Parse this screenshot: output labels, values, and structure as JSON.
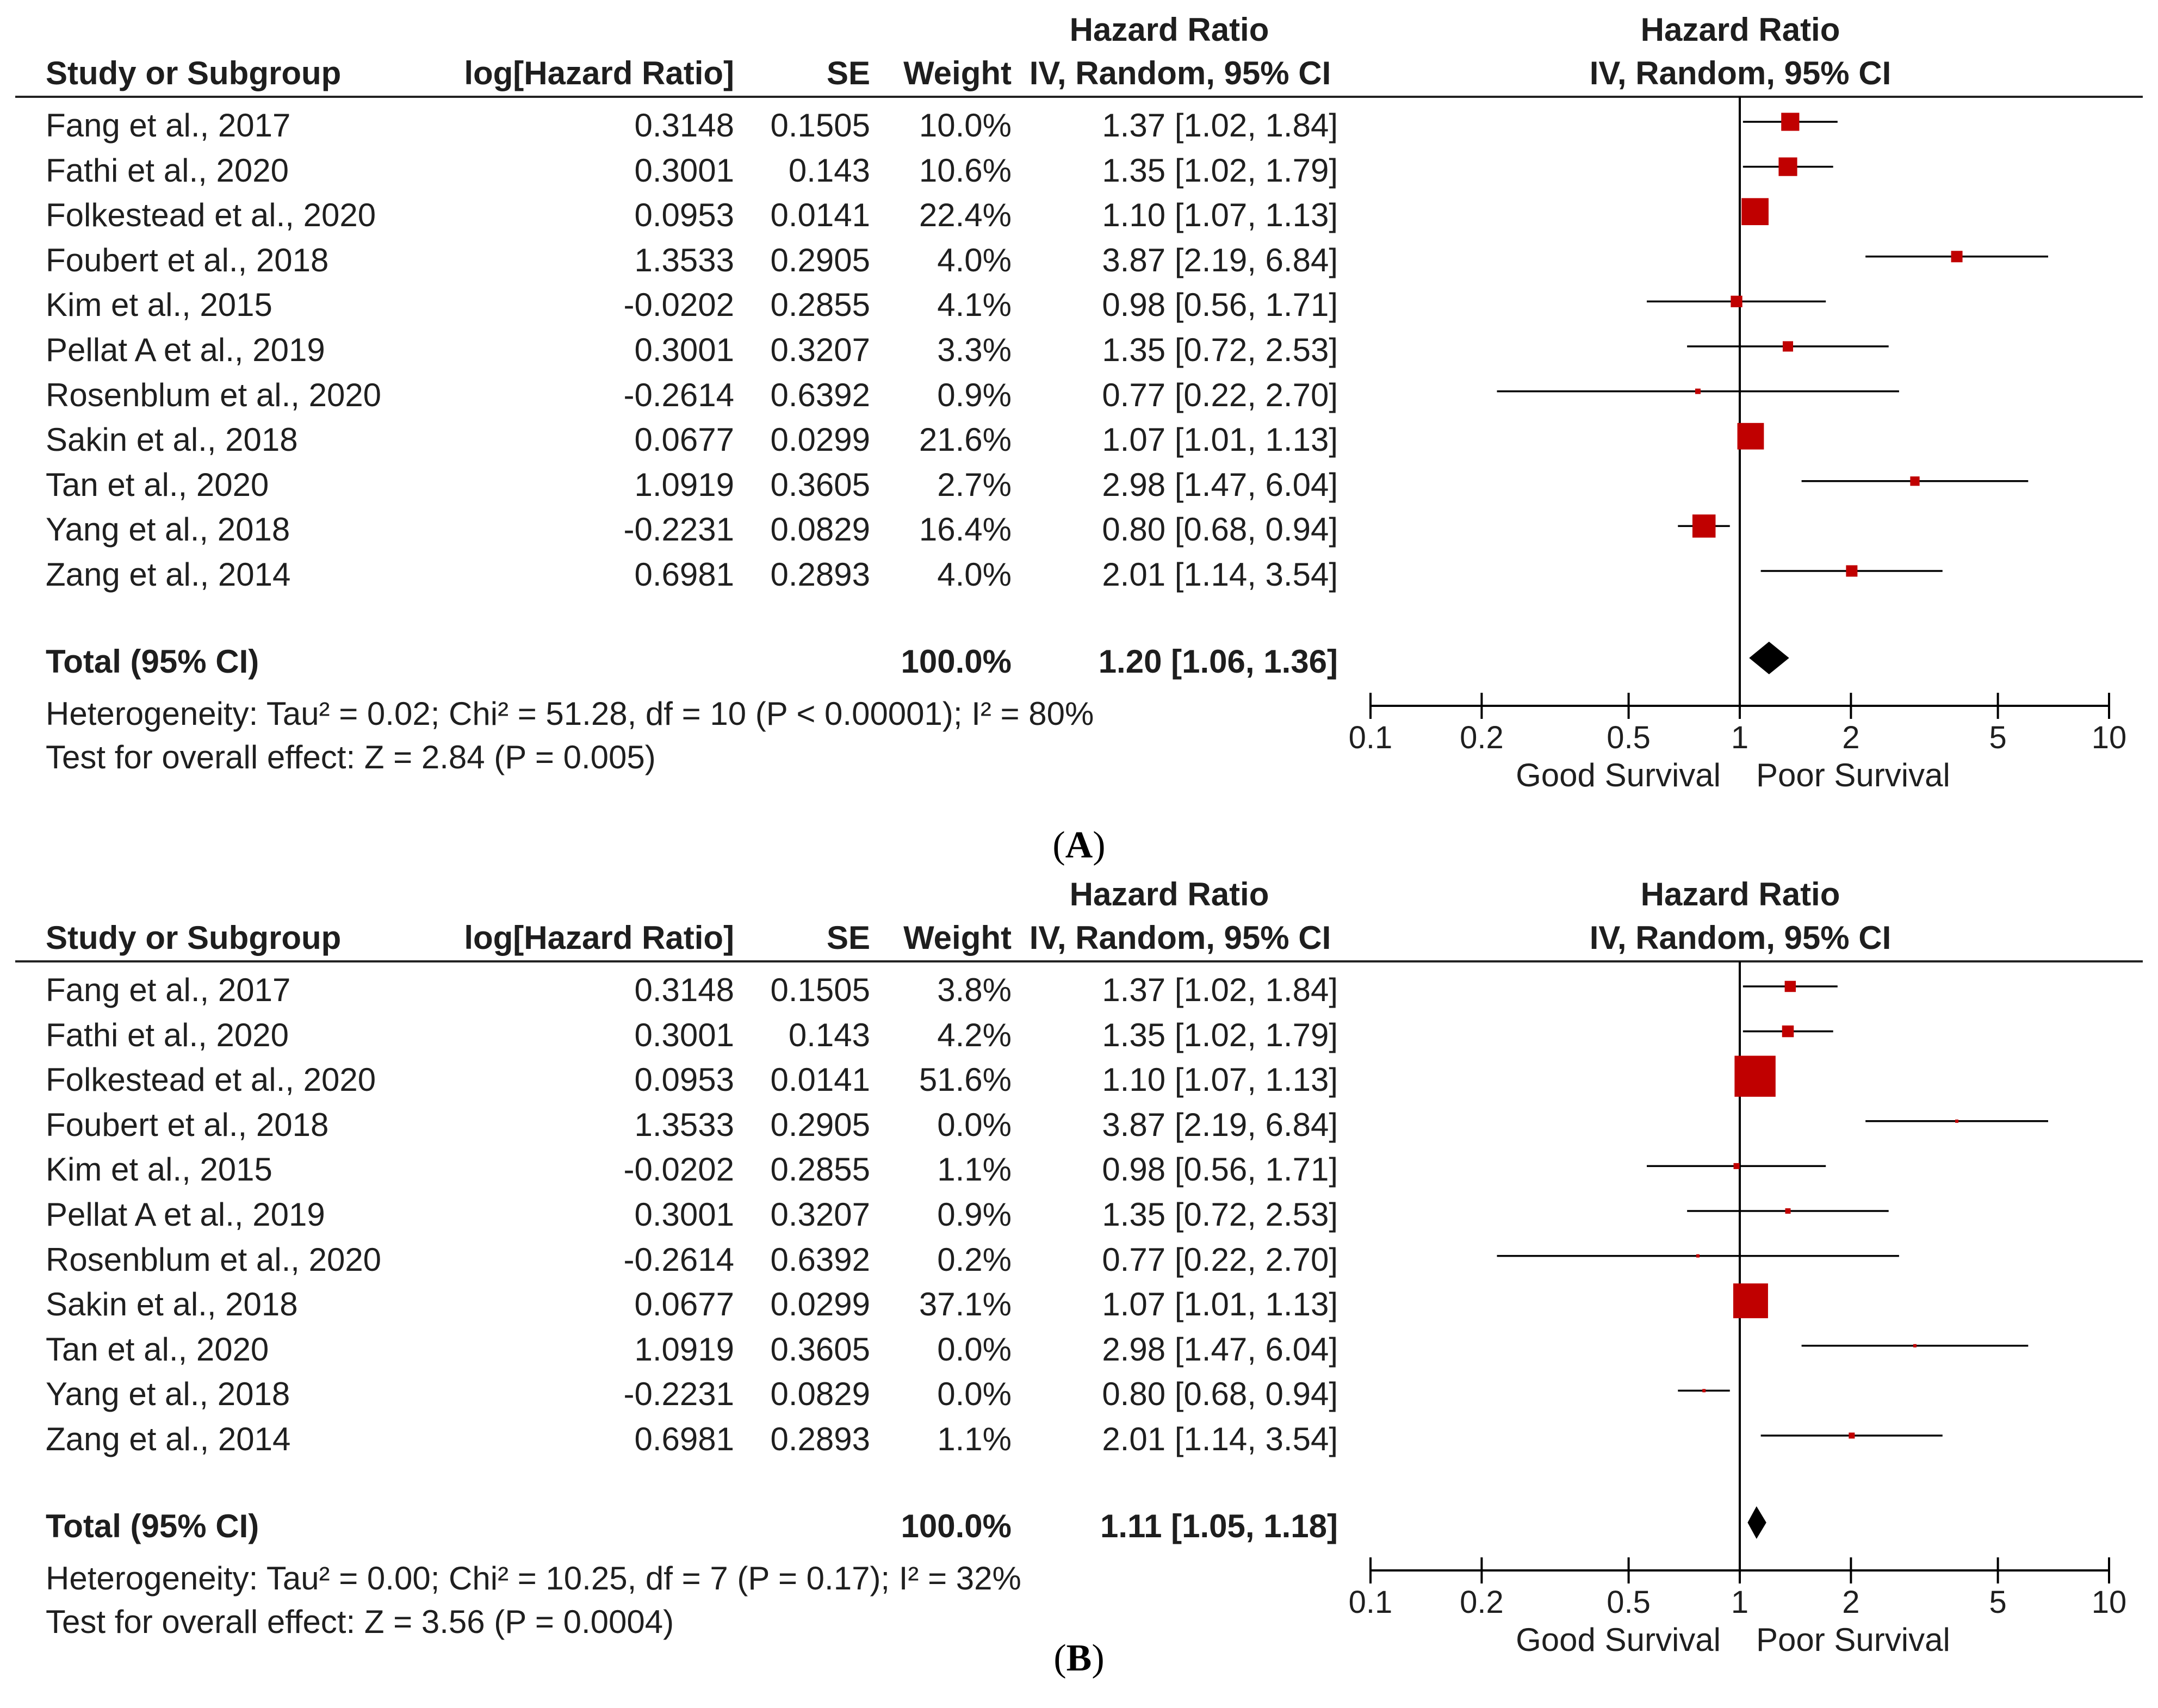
{
  "headers": {
    "study": "Study or Subgroup",
    "loghr": "log[Hazard Ratio]",
    "se": "SE",
    "weight": "Weight",
    "hr_top": "Hazard Ratio",
    "hr_sub": "IV, Random, 95% CI",
    "plot_top": "Hazard Ratio",
    "plot_sub": "IV, Random, 95% CI"
  },
  "panels": [
    {
      "id": "A",
      "caption_open": "(",
      "caption_letter": "A",
      "caption_close": ")",
      "total_label": "Total (95% CI)",
      "total_weight": "100.0%",
      "total_ci": "1.20 [1.06, 1.36]",
      "heterogeneity": "Heterogeneity: Tau² = 0.02; Chi² = 51.28, df = 10 (P < 0.00001); I² = 80%",
      "overall": "Test for overall effect: Z = 2.84 (P = 0.005)",
      "rows": [
        {
          "study": "Fang et al., 2017",
          "loghr": "0.3148",
          "se": "0.1505",
          "weight": "10.0%",
          "ci": "1.37 [1.02, 1.84]"
        },
        {
          "study": "Fathi et al., 2020",
          "loghr": "0.3001",
          "se": "0.143",
          "weight": "10.6%",
          "ci": "1.35 [1.02, 1.79]"
        },
        {
          "study": "Folkestead et al., 2020",
          "loghr": "0.0953",
          "se": "0.0141",
          "weight": "22.4%",
          "ci": "1.10 [1.07, 1.13]"
        },
        {
          "study": "Foubert et al., 2018",
          "loghr": "1.3533",
          "se": "0.2905",
          "weight": "4.0%",
          "ci": "3.87 [2.19, 6.84]"
        },
        {
          "study": "Kim et al., 2015",
          "loghr": "-0.0202",
          "se": "0.2855",
          "weight": "4.1%",
          "ci": "0.98 [0.56, 1.71]"
        },
        {
          "study": "Pellat A et al., 2019",
          "loghr": "0.3001",
          "se": "0.3207",
          "weight": "3.3%",
          "ci": "1.35 [0.72, 2.53]"
        },
        {
          "study": "Rosenblum et al., 2020",
          "loghr": "-0.2614",
          "se": "0.6392",
          "weight": "0.9%",
          "ci": "0.77 [0.22, 2.70]"
        },
        {
          "study": "Sakin et al., 2018",
          "loghr": "0.0677",
          "se": "0.0299",
          "weight": "21.6%",
          "ci": "1.07 [1.01, 1.13]"
        },
        {
          "study": "Tan et al., 2020",
          "loghr": "1.0919",
          "se": "0.3605",
          "weight": "2.7%",
          "ci": "2.98 [1.47, 6.04]"
        },
        {
          "study": "Yang et al., 2018",
          "loghr": "-0.2231",
          "se": "0.0829",
          "weight": "16.4%",
          "ci": "0.80 [0.68, 0.94]"
        },
        {
          "study": "Zang et al., 2014",
          "loghr": "0.6981",
          "se": "0.2893",
          "weight": "4.0%",
          "ci": "2.01 [1.14, 3.54]"
        }
      ]
    },
    {
      "id": "B",
      "caption_open": "(",
      "caption_letter": "B",
      "caption_close": ")",
      "total_label": "Total (95% CI)",
      "total_weight": "100.0%",
      "total_ci": "1.11 [1.05, 1.18]",
      "heterogeneity": "Heterogeneity: Tau² = 0.00; Chi² = 10.25, df = 7 (P = 0.17); I² = 32%",
      "overall": "Test for overall effect: Z = 3.56 (P = 0.0004)",
      "rows": [
        {
          "study": "Fang et al., 2017",
          "loghr": "0.3148",
          "se": "0.1505",
          "weight": "3.8%",
          "ci": "1.37 [1.02, 1.84]"
        },
        {
          "study": "Fathi et al., 2020",
          "loghr": "0.3001",
          "se": "0.143",
          "weight": "4.2%",
          "ci": "1.35 [1.02, 1.79]"
        },
        {
          "study": "Folkestead et al., 2020",
          "loghr": "0.0953",
          "se": "0.0141",
          "weight": "51.6%",
          "ci": "1.10 [1.07, 1.13]"
        },
        {
          "study": "Foubert et al., 2018",
          "loghr": "1.3533",
          "se": "0.2905",
          "weight": "0.0%",
          "ci": "3.87 [2.19, 6.84]"
        },
        {
          "study": "Kim et al., 2015",
          "loghr": "-0.0202",
          "se": "0.2855",
          "weight": "1.1%",
          "ci": "0.98 [0.56, 1.71]"
        },
        {
          "study": "Pellat A et al., 2019",
          "loghr": "0.3001",
          "se": "0.3207",
          "weight": "0.9%",
          "ci": "1.35 [0.72, 2.53]"
        },
        {
          "study": "Rosenblum et al., 2020",
          "loghr": "-0.2614",
          "se": "0.6392",
          "weight": "0.2%",
          "ci": "0.77 [0.22, 2.70]"
        },
        {
          "study": "Sakin et al., 2018",
          "loghr": "0.0677",
          "se": "0.0299",
          "weight": "37.1%",
          "ci": "1.07 [1.01, 1.13]"
        },
        {
          "study": "Tan et al., 2020",
          "loghr": "1.0919",
          "se": "0.3605",
          "weight": "0.0%",
          "ci": "2.98 [1.47, 6.04]"
        },
        {
          "study": "Yang et al., 2018",
          "loghr": "-0.2231",
          "se": "0.0829",
          "weight": "0.0%",
          "ci": "0.80 [0.68, 0.94]"
        },
        {
          "study": "Zang et al., 2014",
          "loghr": "0.6981",
          "se": "0.2893",
          "weight": "1.1%",
          "ci": "2.01 [1.14, 3.54]"
        }
      ]
    }
  ],
  "chart_data": [
    {
      "type": "forest",
      "title": "Hazard Ratio IV, Random, 95% CI",
      "xscale": "log",
      "xlim": [
        0.1,
        10
      ],
      "ticks": [
        0.1,
        0.2,
        0.5,
        1,
        2,
        5,
        10
      ],
      "tick_labels": [
        "0.1",
        "0.2",
        "0.5",
        "1",
        "2",
        "5",
        "10"
      ],
      "xlabel_left": "Good Survival",
      "xlabel_right": "Poor Survival",
      "studies": [
        {
          "hr": 1.37,
          "lo": 1.02,
          "hi": 1.84,
          "weight": 10.0
        },
        {
          "hr": 1.35,
          "lo": 1.02,
          "hi": 1.79,
          "weight": 10.6
        },
        {
          "hr": 1.1,
          "lo": 1.07,
          "hi": 1.13,
          "weight": 22.4
        },
        {
          "hr": 3.87,
          "lo": 2.19,
          "hi": 6.84,
          "weight": 4.0
        },
        {
          "hr": 0.98,
          "lo": 0.56,
          "hi": 1.71,
          "weight": 4.1
        },
        {
          "hr": 1.35,
          "lo": 0.72,
          "hi": 2.53,
          "weight": 3.3
        },
        {
          "hr": 0.77,
          "lo": 0.22,
          "hi": 2.7,
          "weight": 0.9
        },
        {
          "hr": 1.07,
          "lo": 1.01,
          "hi": 1.13,
          "weight": 21.6
        },
        {
          "hr": 2.98,
          "lo": 1.47,
          "hi": 6.04,
          "weight": 2.7
        },
        {
          "hr": 0.8,
          "lo": 0.68,
          "hi": 0.94,
          "weight": 16.4
        },
        {
          "hr": 2.01,
          "lo": 1.14,
          "hi": 3.54,
          "weight": 4.0
        }
      ],
      "total": {
        "hr": 1.2,
        "lo": 1.06,
        "hi": 1.36
      }
    },
    {
      "type": "forest",
      "title": "Hazard Ratio IV, Random, 95% CI",
      "xscale": "log",
      "xlim": [
        0.1,
        10
      ],
      "ticks": [
        0.1,
        0.2,
        0.5,
        1,
        2,
        5,
        10
      ],
      "tick_labels": [
        "0.1",
        "0.2",
        "0.5",
        "1",
        "2",
        "5",
        "10"
      ],
      "xlabel_left": "Good Survival",
      "xlabel_right": "Poor Survival",
      "studies": [
        {
          "hr": 1.37,
          "lo": 1.02,
          "hi": 1.84,
          "weight": 3.8
        },
        {
          "hr": 1.35,
          "lo": 1.02,
          "hi": 1.79,
          "weight": 4.2
        },
        {
          "hr": 1.1,
          "lo": 1.07,
          "hi": 1.13,
          "weight": 51.6
        },
        {
          "hr": 3.87,
          "lo": 2.19,
          "hi": 6.84,
          "weight": 0.0
        },
        {
          "hr": 0.98,
          "lo": 0.56,
          "hi": 1.71,
          "weight": 1.1
        },
        {
          "hr": 1.35,
          "lo": 0.72,
          "hi": 2.53,
          "weight": 0.9
        },
        {
          "hr": 0.77,
          "lo": 0.22,
          "hi": 2.7,
          "weight": 0.2
        },
        {
          "hr": 1.07,
          "lo": 1.01,
          "hi": 1.13,
          "weight": 37.1
        },
        {
          "hr": 2.98,
          "lo": 1.47,
          "hi": 6.04,
          "weight": 0.0
        },
        {
          "hr": 0.8,
          "lo": 0.68,
          "hi": 0.94,
          "weight": 0.0
        },
        {
          "hr": 2.01,
          "lo": 1.14,
          "hi": 3.54,
          "weight": 1.1
        }
      ],
      "total": {
        "hr": 1.11,
        "lo": 1.05,
        "hi": 1.18
      }
    }
  ]
}
